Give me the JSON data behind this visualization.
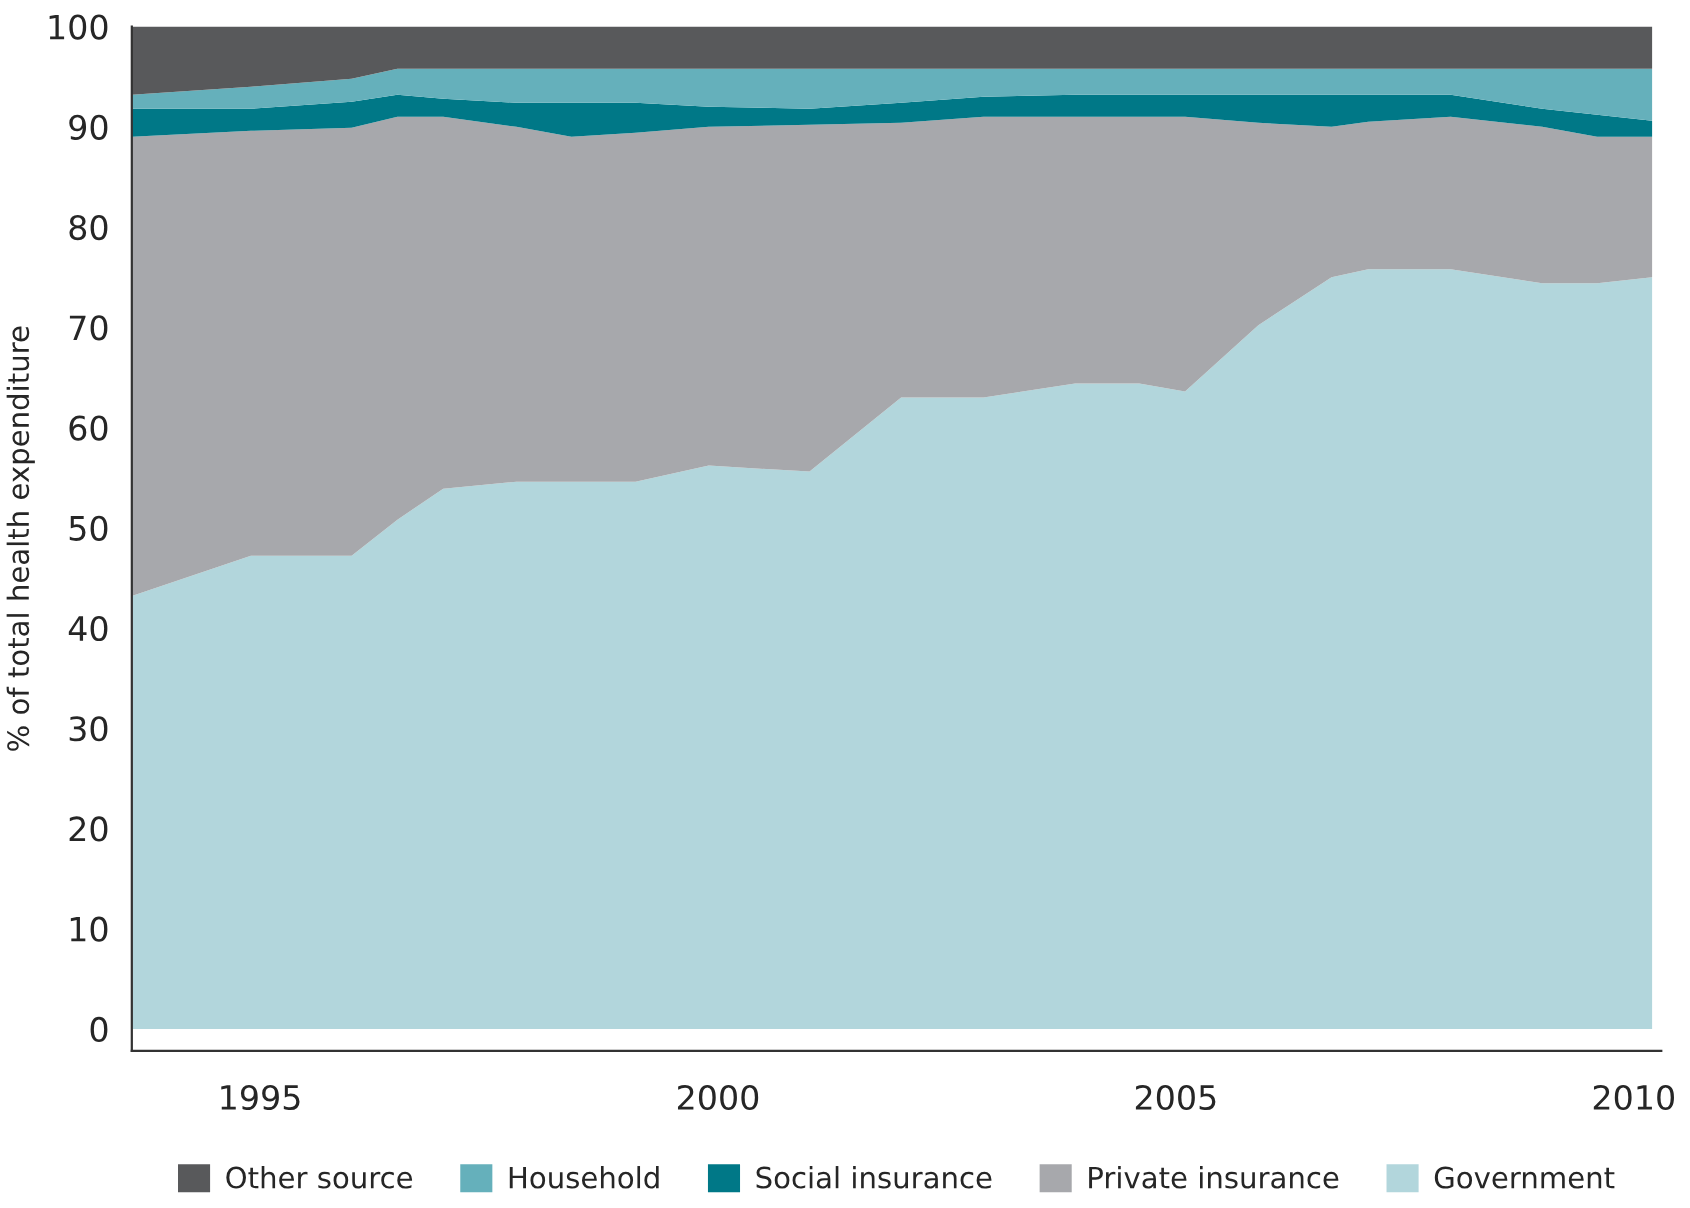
{
  "chart_data": {
    "type": "area",
    "stacked": true,
    "ylabel": "% of total health expenditure",
    "x": [
      1993.6,
      1994.9,
      1996.0,
      1996.5,
      1997.0,
      1997.8,
      1998.4,
      1999.1,
      1999.9,
      2001.0,
      2002.0,
      2002.9,
      2003.9,
      2004.6,
      2005.1,
      2005.9,
      2006.7,
      2007.1,
      2008.0,
      2009.0,
      2009.6,
      2010.2
    ],
    "series": [
      {
        "name": "Government",
        "color": "#b2d6dc",
        "values": [
          43.2,
          47.2,
          47.2,
          50.8,
          53.9,
          54.6,
          54.6,
          54.6,
          56.2,
          55.6,
          63,
          63,
          64.4,
          64.4,
          63.6,
          70.2,
          75,
          75.8,
          75.8,
          74.4,
          74.4,
          75
        ]
      },
      {
        "name": "Private insurance",
        "color": "#a7a8ac",
        "values": [
          45.8,
          42.4,
          42.7,
          40.2,
          37.1,
          35.4,
          34.4,
          34.8,
          33.8,
          34.6,
          27.4,
          28,
          26.6,
          26.6,
          27.4,
          20.2,
          15,
          14.7,
          15.2,
          15.6,
          14.6,
          14
        ]
      },
      {
        "name": "Social insurance",
        "color": "#007887",
        "values": [
          2.8,
          2.2,
          2.6,
          2.2,
          1.8,
          2.4,
          3.4,
          3.0,
          2.0,
          1.6,
          2.0,
          2.0,
          2.2,
          2.2,
          2.2,
          2.8,
          3.2,
          2.7,
          2.2,
          1.8,
          2.2,
          1.6
        ]
      },
      {
        "name": "Household",
        "color": "#65b0bb",
        "values": [
          1.4,
          2.2,
          2.3,
          2.6,
          3,
          3.4,
          3.4,
          3.4,
          3.8,
          4.0,
          3.4,
          2.8,
          2.6,
          2.6,
          2.6,
          2.6,
          2.6,
          2.6,
          2.6,
          4.0,
          4.6,
          5.2
        ]
      },
      {
        "name": "Other source",
        "color": "#58595b",
        "values": [
          6.8,
          6,
          5.2,
          4.2,
          4.2,
          4.2,
          4.2,
          4.2,
          4.2,
          4.2,
          4.2,
          4.2,
          4.2,
          4.2,
          4.2,
          4.2,
          4.2,
          4.2,
          4.2,
          4.2,
          4.2,
          4.2
        ]
      }
    ],
    "xlim": [
      1993.6,
      2010.3
    ],
    "xticks": [
      1995,
      2000,
      2005,
      2010
    ],
    "ylim": [
      -2.2,
      100
    ],
    "yticks": [
      0,
      10,
      20,
      30,
      40,
      50,
      60,
      70,
      80,
      90,
      100
    ],
    "grid": false,
    "legend": "bottom"
  }
}
